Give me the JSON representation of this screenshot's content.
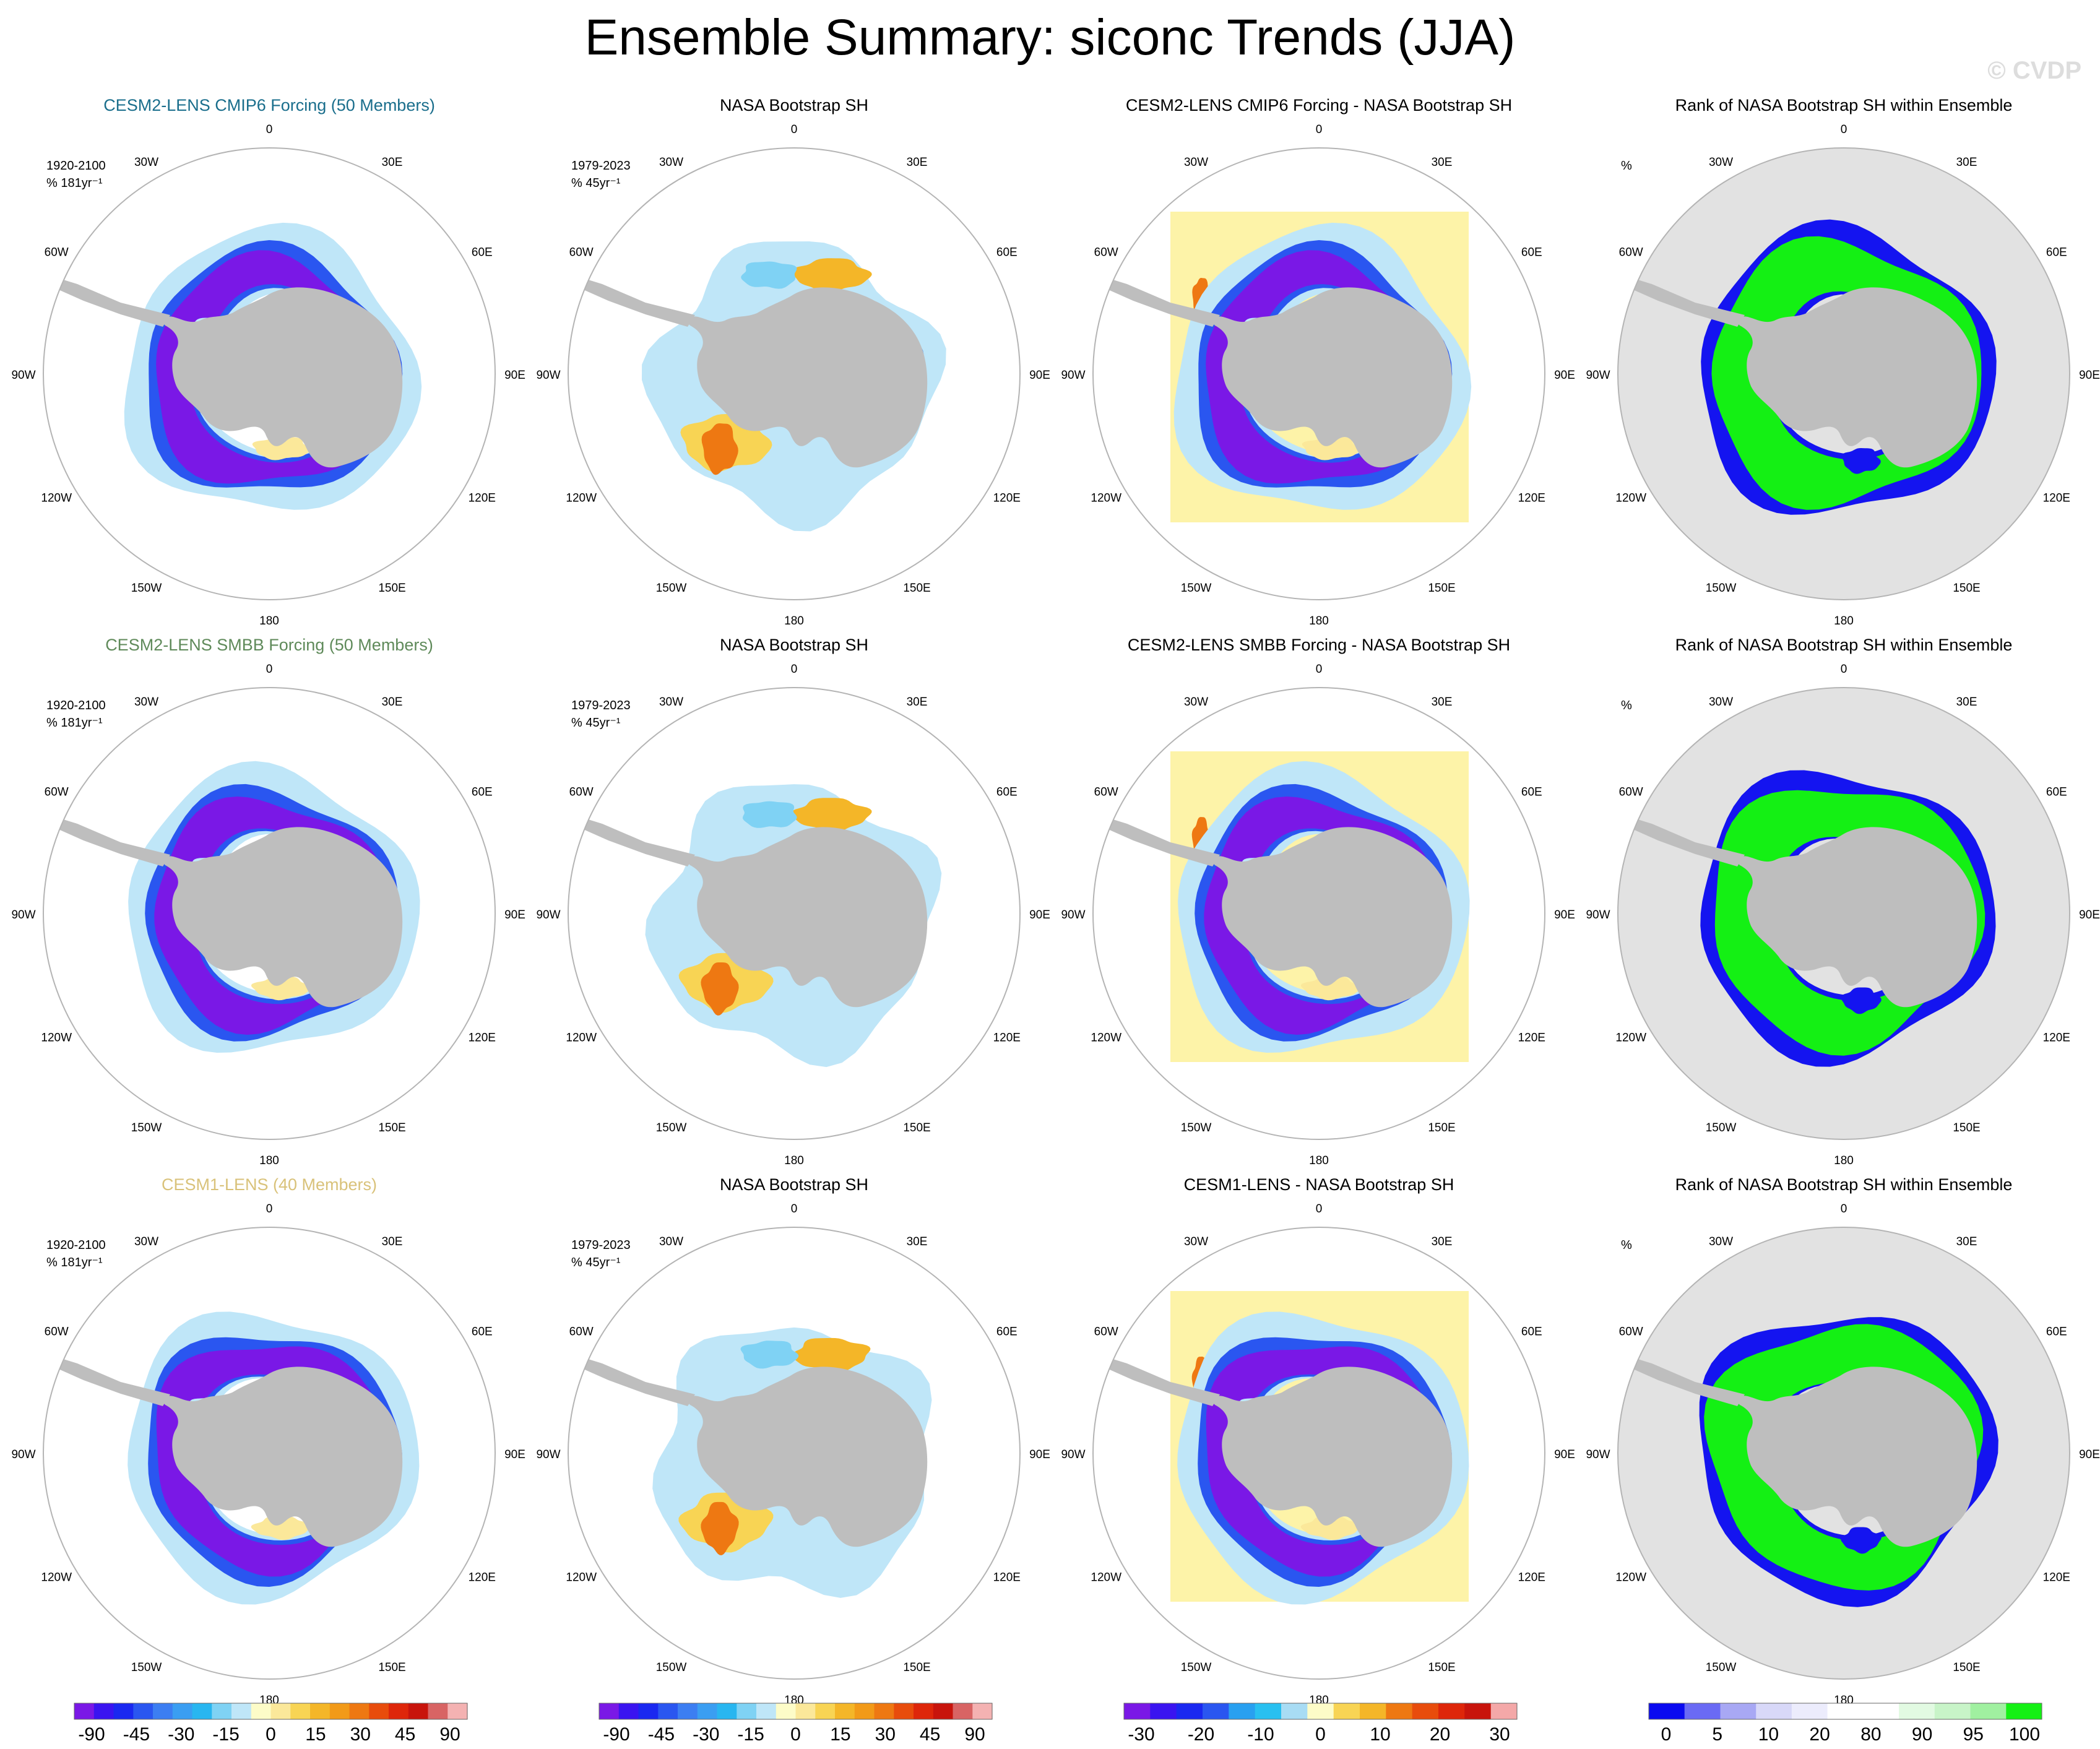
{
  "title": "Ensemble Summary: siconc Trends (JJA)",
  "watermark": "© CVDP",
  "colors": {
    "row_titles": [
      "#1a6e8c",
      "#5f8a5a",
      "#d9c27a"
    ],
    "land": "#bebebe",
    "rank_background": "#e2e2e2",
    "circle": "#b4b4b4"
  },
  "chart_data": {
    "type": "heatmap",
    "projection": "south-polar-stereographic",
    "longitude_labels": [
      "0",
      "30E",
      "60E",
      "90E",
      "120E",
      "150E",
      "180",
      "150W",
      "120W",
      "90W",
      "60W",
      "30W"
    ],
    "panel_types": [
      "ensemble",
      "obs",
      "difference",
      "rank"
    ],
    "rows": [
      {
        "panels": [
          {
            "title": "CESM2-LENS CMIP6 Forcing (50 Members)",
            "type": "ensemble",
            "info": [
              "1920-2100",
              "% 181yr⁻¹"
            ]
          },
          {
            "title": "NASA Bootstrap SH",
            "type": "obs",
            "info": [
              "1979-2023",
              "% 45yr⁻¹"
            ]
          },
          {
            "title": "CESM2-LENS CMIP6 Forcing - NASA Bootstrap SH",
            "type": "difference",
            "info": []
          },
          {
            "title": "Rank of NASA Bootstrap SH within Ensemble",
            "type": "rank",
            "info": [
              "%"
            ]
          }
        ]
      },
      {
        "panels": [
          {
            "title": "CESM2-LENS SMBB Forcing (50 Members)",
            "type": "ensemble",
            "info": [
              "1920-2100",
              "% 181yr⁻¹"
            ]
          },
          {
            "title": "NASA Bootstrap SH",
            "type": "obs",
            "info": [
              "1979-2023",
              "% 45yr⁻¹"
            ]
          },
          {
            "title": "CESM2-LENS SMBB Forcing - NASA Bootstrap SH",
            "type": "difference",
            "info": []
          },
          {
            "title": "Rank of NASA Bootstrap SH within Ensemble",
            "type": "rank",
            "info": [
              "%"
            ]
          }
        ]
      },
      {
        "panels": [
          {
            "title": "CESM1-LENS (40 Members)",
            "type": "ensemble",
            "info": [
              "1920-2100",
              "% 181yr⁻¹"
            ]
          },
          {
            "title": "NASA Bootstrap SH",
            "type": "obs",
            "info": [
              "1979-2023",
              "% 45yr⁻¹"
            ]
          },
          {
            "title": "CESM1-LENS - NASA Bootstrap SH",
            "type": "difference",
            "info": []
          },
          {
            "title": "Rank of NASA Bootstrap SH within Ensemble",
            "type": "rank",
            "info": [
              "%"
            ]
          }
        ]
      }
    ],
    "colorbars": [
      {
        "name": "trend-colorbar",
        "colors": [
          "#7a18e6",
          "#3a14f0",
          "#1a28f0",
          "#2a56f0",
          "#3c7ef2",
          "#3a9ef2",
          "#28b6f0",
          "#7fd2f4",
          "#bfe6f8",
          "#fdfcc8",
          "#fbe89a",
          "#f8d454",
          "#f4b628",
          "#f29a18",
          "#ee7812",
          "#e84c0c",
          "#de260a",
          "#c8140c",
          "#d86464",
          "#f4b2b2"
        ],
        "tick_labels": [
          "-90",
          "-45",
          "-30",
          "-15",
          "0",
          "15",
          "30",
          "45",
          "90"
        ]
      },
      {
        "name": "trend-colorbar-obs",
        "colors": [
          "#7a18e6",
          "#3a14f0",
          "#1a28f0",
          "#2a56f0",
          "#3c7ef2",
          "#3a9ef2",
          "#28b6f0",
          "#7fd2f4",
          "#bfe6f8",
          "#fdfcc8",
          "#fbe89a",
          "#f8d454",
          "#f4b628",
          "#f29a18",
          "#ee7812",
          "#e84c0c",
          "#de260a",
          "#c8140c",
          "#d86464",
          "#f4b2b2"
        ],
        "tick_labels": [
          "-90",
          "-45",
          "-30",
          "-15",
          "0",
          "15",
          "30",
          "45",
          "90"
        ]
      },
      {
        "name": "difference-colorbar",
        "colors": [
          "#7a18e6",
          "#3a14f0",
          "#1a28f0",
          "#2a56f0",
          "#28a0f0",
          "#28c0f0",
          "#a8dcf4",
          "#fdfcc8",
          "#f8d454",
          "#f4b628",
          "#ee7812",
          "#e84c0c",
          "#de260a",
          "#c8140c",
          "#f4a8a8"
        ],
        "tick_labels": [
          "-30",
          "-20",
          "-10",
          "0",
          "10",
          "20",
          "30"
        ]
      },
      {
        "name": "rank-colorbar",
        "colors": [
          "#0a0af0",
          "#6a6af4",
          "#a8a8f4",
          "#d8d8f8",
          "#ececfc",
          "#ffffff",
          "#ffffff",
          "#e2fae2",
          "#c8f4c8",
          "#a0f0a0",
          "#14f014"
        ],
        "tick_labels": [
          "0",
          "5",
          "10",
          "20",
          "80",
          "90",
          "95",
          "100"
        ]
      }
    ]
  }
}
